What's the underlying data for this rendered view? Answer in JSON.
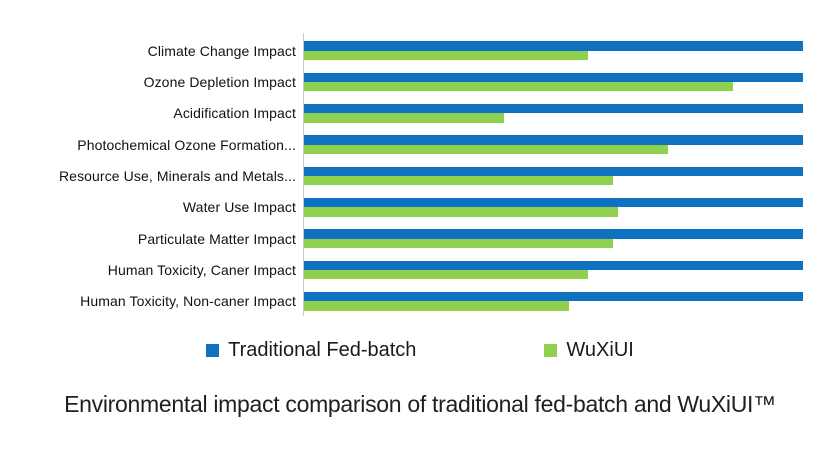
{
  "chart_data": {
    "type": "bar",
    "orientation": "horizontal",
    "title": "Environmental impact comparison of traditional fed-batch and WuXiUI™",
    "xlabel": "",
    "ylabel": "",
    "categories": [
      "Climate Change Impact",
      "Ozone Depletion Impact",
      "Acidification Impact",
      "Photochemical Ozone Formation...",
      "Resource Use, Minerals and Metals...",
      "Water Use Impact",
      "Particulate Matter Impact",
      "Human Toxicity, Caner Impact",
      "Human Toxicity, Non-caner Impact"
    ],
    "series": [
      {
        "name": "Traditional Fed-batch",
        "values": [
          100,
          100,
          100,
          100,
          100,
          100,
          100,
          100,
          100
        ]
      },
      {
        "name": "WuXiUI",
        "values": [
          57,
          86,
          40,
          73,
          62,
          63,
          62,
          57,
          53
        ]
      }
    ],
    "units": "relative % (Traditional Fed-batch = 100)",
    "xlim": [
      0,
      107
    ],
    "grid": false,
    "legend_position": "bottom"
  },
  "colors": {
    "traditional_blue": "#0f72c1",
    "wuxiui_green": "#8fd04f",
    "axis_line": "#c9c9c9",
    "text": "#111111"
  }
}
